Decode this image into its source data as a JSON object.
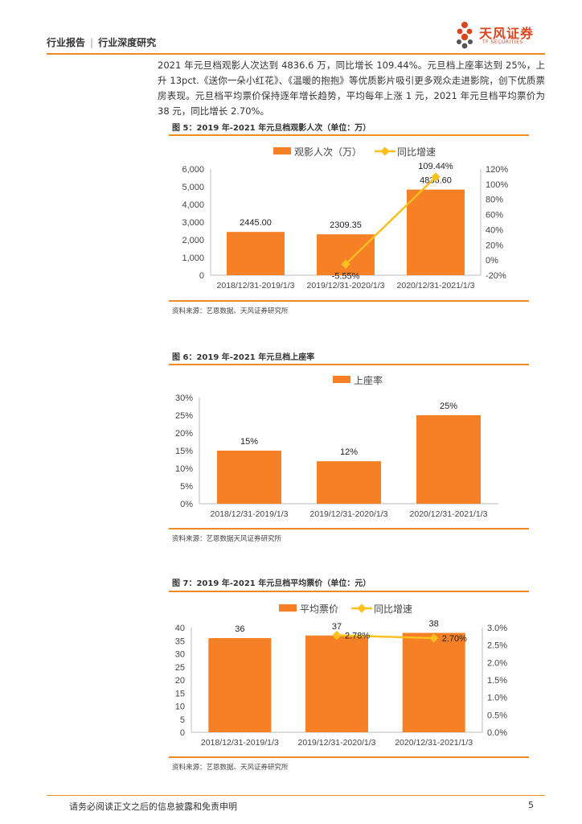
{
  "header": {
    "section": "行业报告",
    "subsection": "行业深度研究",
    "logo_name": "天风证券",
    "logo_sub": "TF SECURITIES"
  },
  "paragraph": "2021 年元旦档观影人次达到 4836.6 万，同比增长 109.44%。元旦档上座率达到 25%，上升 13pct.《送你一朵小红花》、《温暖的抱抱》等优质影片吸引更多观众走进影院，创下优质票房表现。元旦档平均票价保持逐年增长趋势，平均每年上涨 1 元，2021 年元旦档平均票价为 38 元，同比增长 2.70%。",
  "colors": {
    "accent": "#f08a24",
    "bar": "#f58025",
    "line": "#fbbf1e"
  },
  "figures": [
    {
      "title": "图 5：2019 年-2021 年元旦档观影人次（单位：万）",
      "source": "资料来源：艺恩数据、天风证券研究所",
      "chart_data": {
        "type": "bar",
        "categories": [
          "2018/12/31-2019/1/3",
          "2019/12/31-2020/1/3",
          "2020/12/31-2021/1/3"
        ],
        "series": [
          {
            "name": "观影人次（万）",
            "type": "bar",
            "axis": "left",
            "values": [
              2445.0,
              2309.35,
              4836.6
            ],
            "labels": [
              "2445.00",
              "2309.35",
              "4836.60"
            ]
          },
          {
            "name": "同比增速",
            "type": "line",
            "axis": "right",
            "values": [
              null,
              -5.55,
              109.44
            ],
            "labels": [
              "",
              "-5.55%",
              "109.44%"
            ]
          }
        ],
        "ylim": [
          0,
          6000
        ],
        "yticks": [
          "0",
          "1,000",
          "2,000",
          "3,000",
          "4,000",
          "5,000",
          "6,000"
        ],
        "y2lim": [
          -20,
          120
        ],
        "y2ticks": [
          "-20%",
          "0%",
          "20%",
          "40%",
          "60%",
          "80%",
          "100%",
          "120%"
        ],
        "legend": "top"
      }
    },
    {
      "title": "图 6：2019 年-2021 年元旦档上座率",
      "source": "资料来源：艺恩数据天风证券研究所",
      "chart_data": {
        "type": "bar",
        "categories": [
          "2018/12/31-2019/1/3",
          "2019/12/31-2020/1/3",
          "2020/12/31-2021/1/3"
        ],
        "series": [
          {
            "name": "上座率",
            "type": "bar",
            "axis": "left",
            "values": [
              15,
              12,
              25
            ],
            "labels": [
              "15%",
              "12%",
              "25%"
            ]
          }
        ],
        "ylim": [
          0,
          30
        ],
        "yticks": [
          "0%",
          "5%",
          "10%",
          "15%",
          "20%",
          "25%",
          "30%"
        ],
        "legend": "top"
      }
    },
    {
      "title": "图 7：2019 年-2021 年元旦档平均票价（单位：元）",
      "source": "资料来源：艺恩数据、天风证券研究所",
      "chart_data": {
        "type": "bar",
        "categories": [
          "2018/12/31-2019/1/3",
          "2019/12/31-2020/1/3",
          "2020/12/31-2021/1/3"
        ],
        "series": [
          {
            "name": "平均票价",
            "type": "bar",
            "axis": "left",
            "values": [
              36,
              37,
              38
            ],
            "labels": [
              "36",
              "37",
              "38"
            ]
          },
          {
            "name": "同比增速",
            "type": "line",
            "axis": "right",
            "values": [
              null,
              2.78,
              2.7
            ],
            "labels": [
              "",
              "2.78%",
              "2.70%"
            ]
          }
        ],
        "ylim": [
          0,
          40
        ],
        "yticks": [
          "0",
          "5",
          "10",
          "15",
          "20",
          "25",
          "30",
          "35",
          "40"
        ],
        "y2lim": [
          0,
          3.0
        ],
        "y2ticks": [
          "0.0%",
          "0.5%",
          "1.0%",
          "1.5%",
          "2.0%",
          "2.5%",
          "3.0%"
        ],
        "legend": "top"
      }
    }
  ],
  "footer": {
    "disclaimer": "请务必阅读正文之后的信息披露和免责申明",
    "page": "5"
  }
}
